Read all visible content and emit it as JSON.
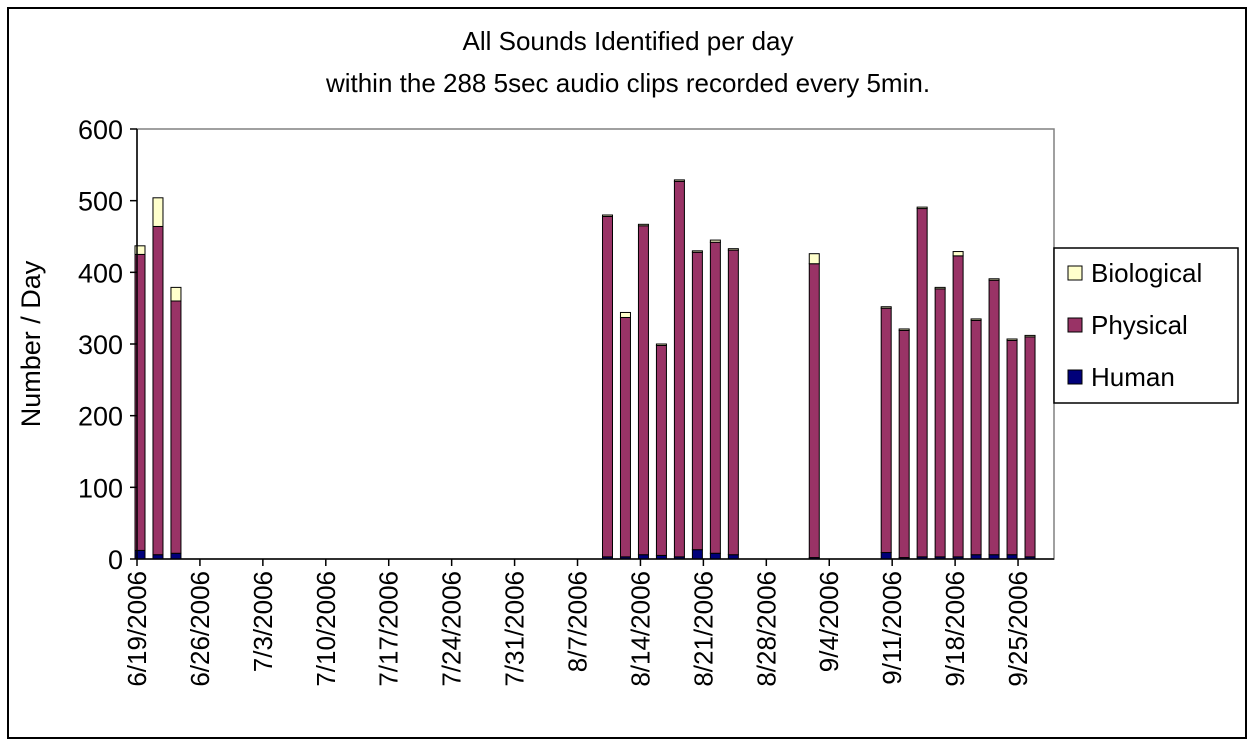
{
  "chart_data": {
    "type": "bar",
    "stacked": true,
    "title": "All Sounds Identified per day",
    "subtitle": "within the 288 5sec audio clips recorded every 5min.",
    "ylabel": "Number / Day",
    "xlabel": "",
    "ylim": [
      0,
      600
    ],
    "yticks": [
      "0",
      "100",
      "200",
      "300",
      "400",
      "500",
      "600"
    ],
    "x_range": [
      "6/19/2006",
      "9/29/2006"
    ],
    "x_ticks": [
      "6/19/2006",
      "6/26/2006",
      "7/3/2006",
      "7/10/2006",
      "7/17/2006",
      "7/24/2006",
      "7/31/2006",
      "8/7/2006",
      "8/14/2006",
      "8/21/2006",
      "8/28/2006",
      "9/4/2006",
      "9/11/2006",
      "9/18/2006",
      "9/25/2006"
    ],
    "legend_position": "right",
    "colors": {
      "Human": "#00007a",
      "Physical": "#993366",
      "Biological": "#ffffcc"
    },
    "categories": [
      "6/19/2006",
      "6/21/2006",
      "6/23/2006",
      "8/10/2006",
      "8/12/2006",
      "8/14/2006",
      "8/16/2006",
      "8/18/2006",
      "8/20/2006",
      "8/22/2006",
      "8/24/2006",
      "9/2/2006",
      "9/10/2006",
      "9/12/2006",
      "9/14/2006",
      "9/16/2006",
      "9/18/2006",
      "9/20/2006",
      "9/22/2006",
      "9/24/2006",
      "9/26/2006"
    ],
    "series": [
      {
        "name": "Human",
        "values": [
          12,
          6,
          8,
          3,
          3,
          6,
          5,
          3,
          13,
          8,
          6,
          2,
          9,
          2,
          3,
          3,
          3,
          6,
          6,
          6,
          3
        ]
      },
      {
        "name": "Physical",
        "values": [
          413,
          458,
          352,
          475,
          334,
          459,
          293,
          524,
          415,
          434,
          425,
          410,
          341,
          317,
          486,
          374,
          420,
          327,
          383,
          299,
          307
        ]
      },
      {
        "name": "Biological",
        "values": [
          12,
          40,
          19,
          2,
          7,
          2,
          2,
          2,
          2,
          3,
          2,
          14,
          2,
          2,
          2,
          2,
          6,
          2,
          2,
          2,
          2
        ]
      }
    ]
  }
}
